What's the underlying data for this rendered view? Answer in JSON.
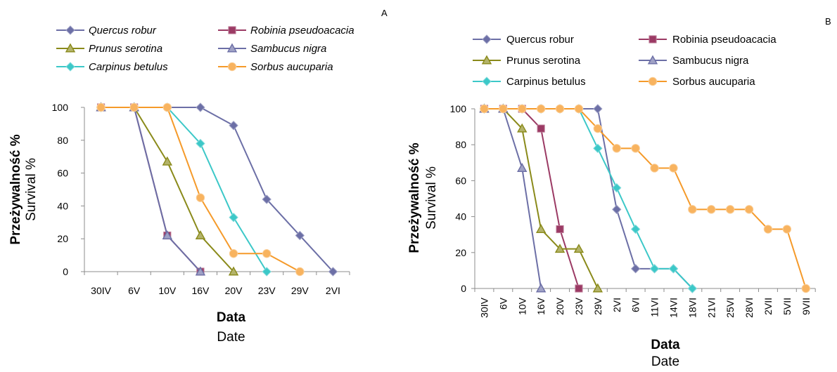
{
  "chart_data": [
    {
      "type": "line",
      "panel": "A",
      "xlabel": "Data",
      "xlabel_en": "Date",
      "ylabel": "Przeżywalność %",
      "ylabel_en": "Survival %",
      "ylim": [
        0,
        100
      ],
      "yticks": [
        0,
        20,
        40,
        60,
        80,
        100
      ],
      "categories": [
        "30IV",
        "6V",
        "10V",
        "16V",
        "20V",
        "23V",
        "29V",
        "2VI"
      ],
      "legend_italic": true,
      "series": [
        {
          "name": "Quercus robur",
          "color": "#6c6fa6",
          "marker": "diamond",
          "values": [
            100,
            100,
            100,
            100,
            89,
            44,
            22,
            0
          ]
        },
        {
          "name": "Robinia pseudoacacia",
          "color": "#9b3a64",
          "marker": "square",
          "values": [
            100,
            100,
            22,
            0,
            null,
            null,
            null,
            null
          ]
        },
        {
          "name": "Prunus serotina",
          "color": "#8a8a1a",
          "marker": "triangle",
          "values": [
            100,
            100,
            67,
            22,
            0,
            null,
            null,
            null
          ]
        },
        {
          "name": "Sambucus nigra",
          "color": "#6c6fa6",
          "marker": "triangle",
          "values": [
            100,
            100,
            22,
            0,
            null,
            null,
            null,
            null
          ]
        },
        {
          "name": "Carpinus betulus",
          "color": "#3cc8c8",
          "marker": "diamond",
          "values": [
            100,
            100,
            100,
            78,
            33,
            0,
            null,
            null
          ]
        },
        {
          "name": "Sorbus aucuparia",
          "color": "#f59a2a",
          "marker": "circle",
          "values": [
            100,
            100,
            100,
            45,
            11,
            11,
            0,
            null
          ]
        }
      ]
    },
    {
      "type": "line",
      "panel": "B",
      "xlabel": "Data",
      "xlabel_en": "Date",
      "ylabel": "Przeżywalność %",
      "ylabel_en": "Survival %",
      "ylim": [
        0,
        100
      ],
      "yticks": [
        0,
        20,
        40,
        60,
        80,
        100
      ],
      "categories": [
        "30IV",
        "6V",
        "10V",
        "16V",
        "20V",
        "23V",
        "29V",
        "2VI",
        "6VI",
        "11VI",
        "14VI",
        "18VI",
        "21VI",
        "25VI",
        "28VI",
        "2VII",
        "5VII",
        "9VII"
      ],
      "legend_italic": false,
      "series": [
        {
          "name": "Quercus robur",
          "color": "#6c6fa6",
          "marker": "diamond",
          "values": [
            100,
            100,
            100,
            100,
            100,
            100,
            100,
            44,
            11,
            11,
            11,
            0,
            null,
            null,
            null,
            null,
            null,
            null
          ]
        },
        {
          "name": "Robinia pseudoacacia",
          "color": "#9b3a64",
          "marker": "square",
          "values": [
            100,
            100,
            100,
            89,
            33,
            0,
            null,
            null,
            null,
            null,
            null,
            null,
            null,
            null,
            null,
            null,
            null,
            null
          ]
        },
        {
          "name": "Prunus serotina",
          "color": "#8a8a1a",
          "marker": "triangle",
          "values": [
            100,
            100,
            89,
            33,
            22,
            22,
            0,
            null,
            null,
            null,
            null,
            null,
            null,
            null,
            null,
            null,
            null,
            null
          ]
        },
        {
          "name": "Sambucus nigra",
          "color": "#6c6fa6",
          "marker": "triangle",
          "values": [
            100,
            100,
            67,
            0,
            null,
            null,
            null,
            null,
            null,
            null,
            null,
            null,
            null,
            null,
            null,
            null,
            null,
            null
          ]
        },
        {
          "name": "Carpinus betulus",
          "color": "#3cc8c8",
          "marker": "diamond",
          "values": [
            100,
            100,
            100,
            100,
            100,
            100,
            78,
            56,
            33,
            11,
            11,
            0,
            null,
            null,
            null,
            null,
            null,
            null
          ]
        },
        {
          "name": "Sorbus aucuparia",
          "color": "#f59a2a",
          "marker": "circle",
          "values": [
            100,
            100,
            100,
            100,
            100,
            100,
            89,
            78,
            78,
            67,
            67,
            44,
            44,
            44,
            44,
            33,
            33,
            0
          ]
        }
      ]
    }
  ]
}
